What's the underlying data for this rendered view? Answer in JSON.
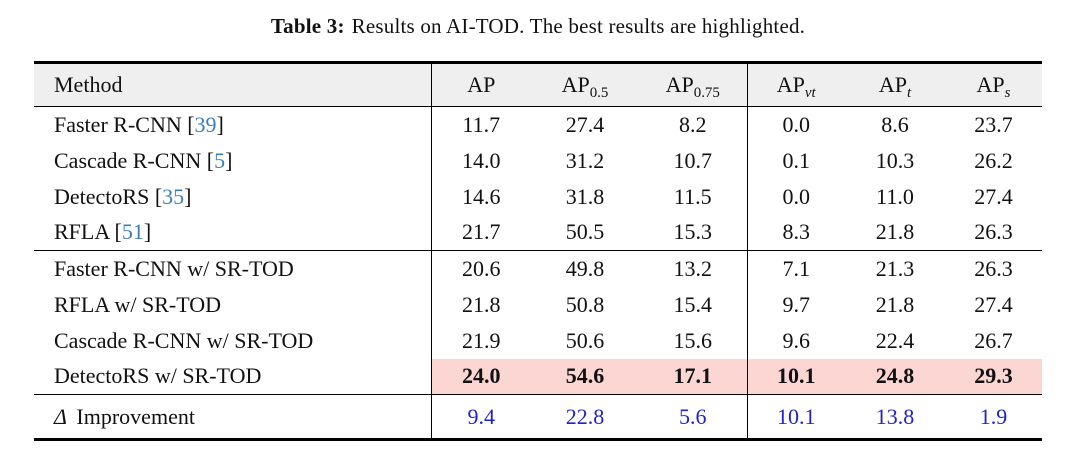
{
  "caption": {
    "label": "Table 3:",
    "text": "Results on AI-TOD. The best results are highlighted."
  },
  "colors": {
    "citation_blue": "#3d7dbd",
    "improvement_blue": "#2222cc",
    "highlight_pink": "#fcd6d2",
    "header_gray": "#efefef",
    "rule_black": "#000000"
  },
  "table": {
    "method_header": "Method",
    "columns": [
      {
        "base": "AP",
        "sub": "",
        "italic": false,
        "sep": true
      },
      {
        "base": "AP",
        "sub": "0.5",
        "italic": false,
        "sep": false
      },
      {
        "base": "AP",
        "sub": "0.75",
        "italic": false,
        "sep": false
      },
      {
        "base": "AP",
        "sub": "vt",
        "italic": true,
        "sep": true
      },
      {
        "base": "AP",
        "sub": "t",
        "italic": true,
        "sep": false
      },
      {
        "base": "AP",
        "sub": "s",
        "italic": true,
        "sep": false
      }
    ],
    "groups": [
      {
        "name": "baselines",
        "rows": [
          {
            "method": "Faster R-CNN",
            "citation": "39",
            "values": [
              "11.7",
              "27.4",
              "8.2",
              "0.0",
              "8.6",
              "23.7"
            ]
          },
          {
            "method": "Cascade R-CNN",
            "citation": "5",
            "values": [
              "14.0",
              "31.2",
              "10.7",
              "0.1",
              "10.3",
              "26.2"
            ]
          },
          {
            "method": "DetectoRS",
            "citation": "35",
            "values": [
              "14.6",
              "31.8",
              "11.5",
              "0.0",
              "11.0",
              "27.4"
            ]
          },
          {
            "method": "RFLA",
            "citation": "51",
            "values": [
              "21.7",
              "50.5",
              "15.3",
              "8.3",
              "21.8",
              "26.3"
            ]
          }
        ]
      },
      {
        "name": "sr-tod",
        "rows": [
          {
            "method": "Faster R-CNN w/ SR-TOD",
            "values": [
              "20.6",
              "49.8",
              "13.2",
              "7.1",
              "21.3",
              "26.3"
            ]
          },
          {
            "method": "RFLA w/ SR-TOD",
            "values": [
              "21.8",
              "50.8",
              "15.4",
              "9.7",
              "21.8",
              "27.4"
            ]
          },
          {
            "method": "Cascade R-CNN w/ SR-TOD",
            "values": [
              "21.9",
              "50.6",
              "15.6",
              "9.6",
              "22.4",
              "26.7"
            ]
          },
          {
            "method": "DetectoRS w/ SR-TOD",
            "values": [
              "24.0",
              "54.6",
              "17.1",
              "10.1",
              "24.8",
              "29.3"
            ],
            "highlight": true,
            "bold": true
          }
        ]
      }
    ],
    "footer": {
      "delta": "Δ",
      "label": "Improvement",
      "values": [
        "9.4",
        "22.8",
        "5.6",
        "10.1",
        "13.8",
        "1.9"
      ]
    }
  }
}
